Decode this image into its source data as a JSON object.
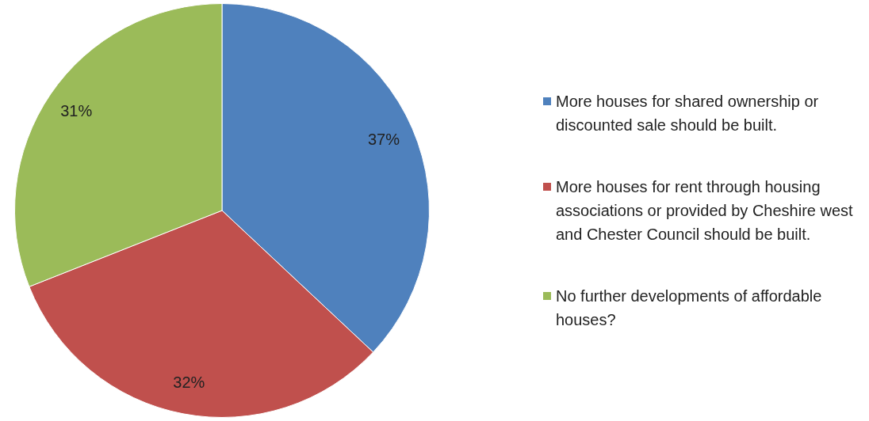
{
  "chart_data": {
    "type": "pie",
    "categories": [
      "More houses for shared ownership or discounted sale should be built.",
      "More houses for rent through housing associations or provided by Cheshire west and Chester Council should be built.",
      "No further developments of affordable houses?"
    ],
    "values": [
      37,
      32,
      31
    ],
    "colors": [
      "#4f81bd",
      "#c0504d",
      "#9bbb59"
    ],
    "value_labels": [
      "37%",
      "32%",
      "31%"
    ],
    "legend": "right"
  }
}
